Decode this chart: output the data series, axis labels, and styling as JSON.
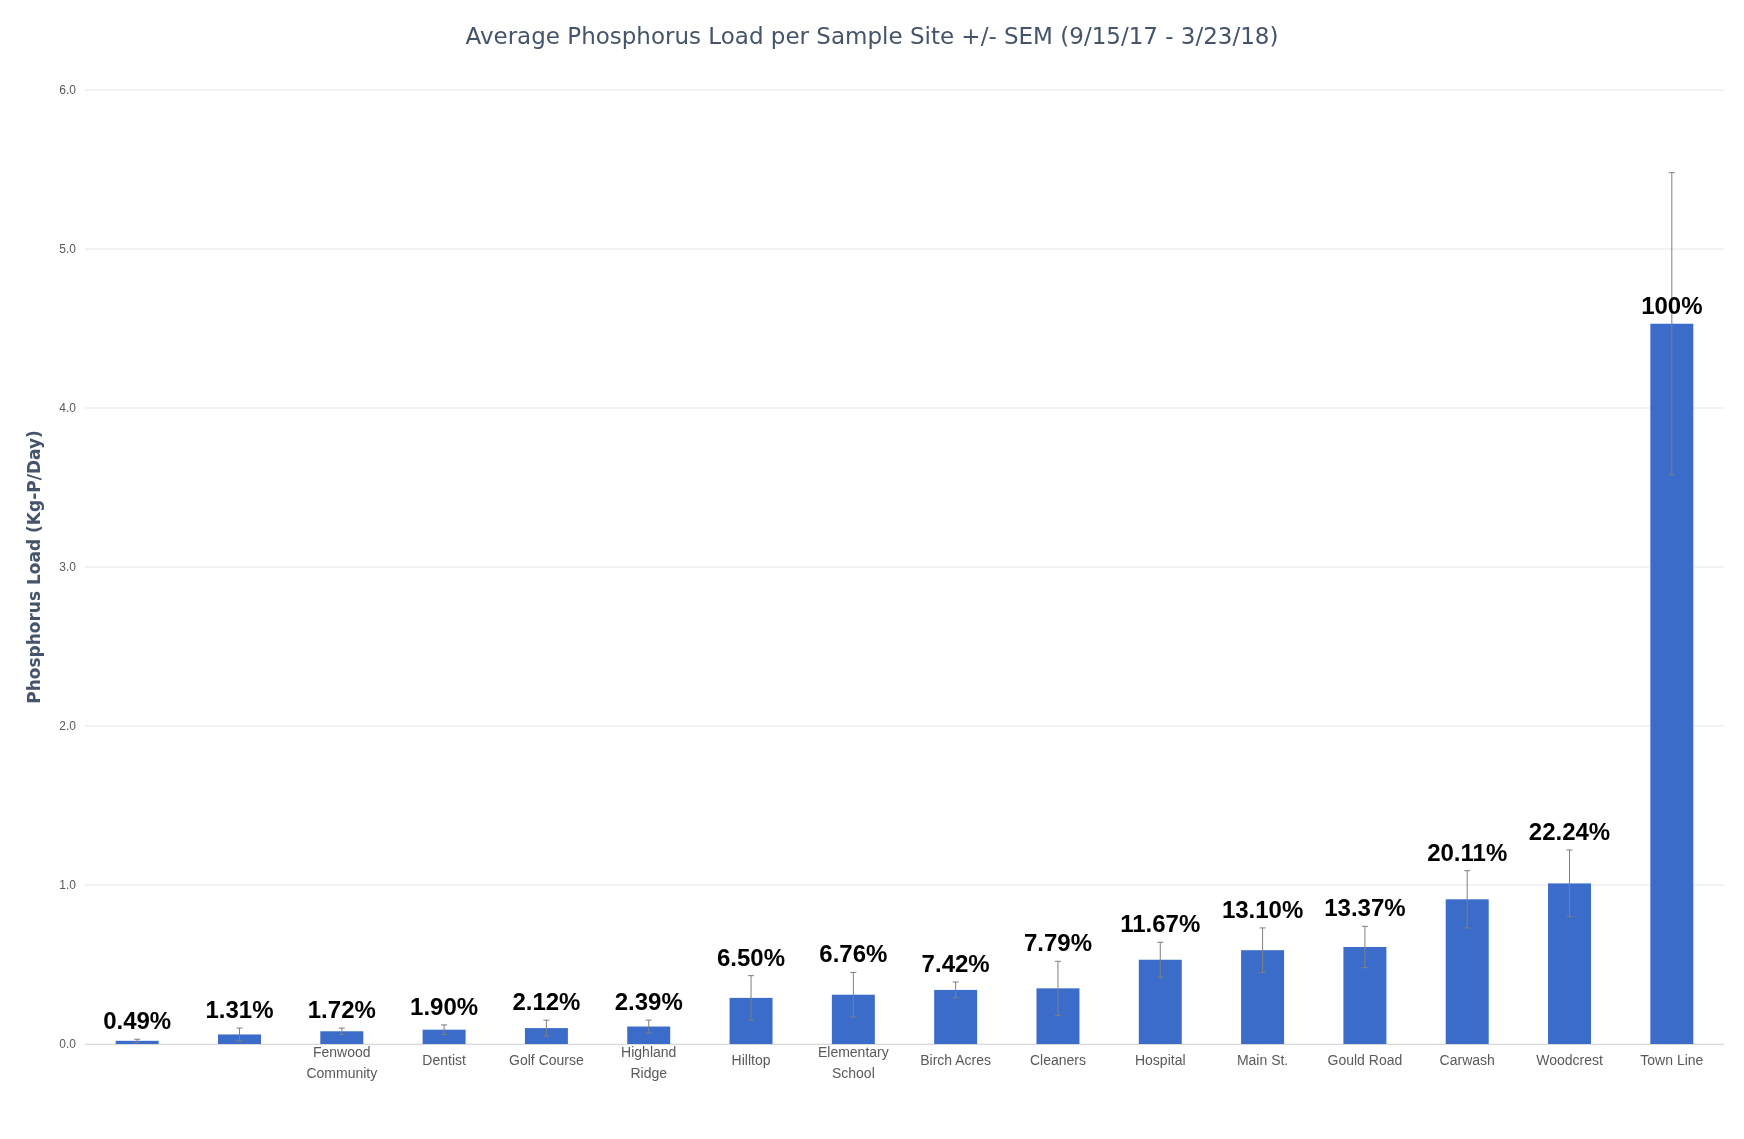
{
  "chart_data": {
    "type": "bar",
    "title": "Average Phosphorus Load per Sample Site +/- SEM (9/15/17 - 3/23/18)",
    "ylabel": "Phosphorus Load (Kg-P/Day)",
    "categories": [
      null,
      null,
      "Fenwood Community",
      "Dentist",
      "Golf Course",
      "Highland Ridge",
      "Hilltop",
      "Elementary School",
      "Birch Acres",
      "Cleaners",
      "Hospital",
      "Main St.",
      "Gould Road",
      "Carwash",
      "Woodcrest",
      "Town Line"
    ],
    "values": [
      0.02,
      0.06,
      0.08,
      0.09,
      0.1,
      0.11,
      0.29,
      0.31,
      0.34,
      0.35,
      0.53,
      0.59,
      0.61,
      0.91,
      1.01,
      4.53
    ],
    "errors": [
      0.01,
      0.04,
      0.02,
      0.03,
      0.05,
      0.04,
      0.14,
      0.14,
      0.05,
      0.17,
      0.11,
      0.14,
      0.13,
      0.18,
      0.21,
      0.95
    ],
    "annotations": [
      {
        "text": "0.49%",
        "y": 0.02
      },
      {
        "text": "1.31%",
        "y": 0.06
      },
      {
        "text": "1.72%",
        "x": "Fenwood Community",
        "y": 0.08
      },
      {
        "text": "1.90%",
        "x": "Dentist",
        "y": 0.09
      },
      {
        "text": "2.12%",
        "x": "Golf Course",
        "y": 0.1
      },
      {
        "text": "2.39%",
        "x": "Highland Ridge",
        "y": 0.11
      },
      {
        "text": "6.50%",
        "x": "Hilltop",
        "y": 0.29
      },
      {
        "text": "6.76%",
        "x": "Elementary School",
        "y": 0.31
      },
      {
        "text": "7.42%",
        "x": "Birch Acres",
        "y": 0.34
      },
      {
        "text": "7.79%",
        "x": "Cleaners",
        "y": 0.35
      },
      {
        "text": "11.67%",
        "x": "Hospital",
        "y": 0.53
      },
      {
        "text": "13.10%",
        "x": "Main St.",
        "y": 0.59
      },
      {
        "text": "13.37%",
        "x": "Gould Road",
        "y": 0.61
      },
      {
        "text": "20.11%",
        "x": "Carwash",
        "y": 0.91
      },
      {
        "text": "22.24%",
        "x": "Woodcrest",
        "y": 1.01
      },
      {
        "text": "100%",
        "x": "Town Line",
        "y": 4.53
      }
    ],
    "color": "#3b6cc9",
    "ylim": [
      0,
      6
    ],
    "yticks": [
      {
        "value": 0,
        "label": "0.0"
      },
      {
        "value": 1,
        "label": "1.0"
      },
      {
        "value": 2,
        "label": "2.0"
      },
      {
        "value": 3,
        "label": "3.0"
      },
      {
        "value": 4,
        "label": "4.0"
      },
      {
        "value": 5,
        "label": "5.0"
      },
      {
        "value": 6,
        "label": "6.0"
      }
    ],
    "grid": "y"
  }
}
